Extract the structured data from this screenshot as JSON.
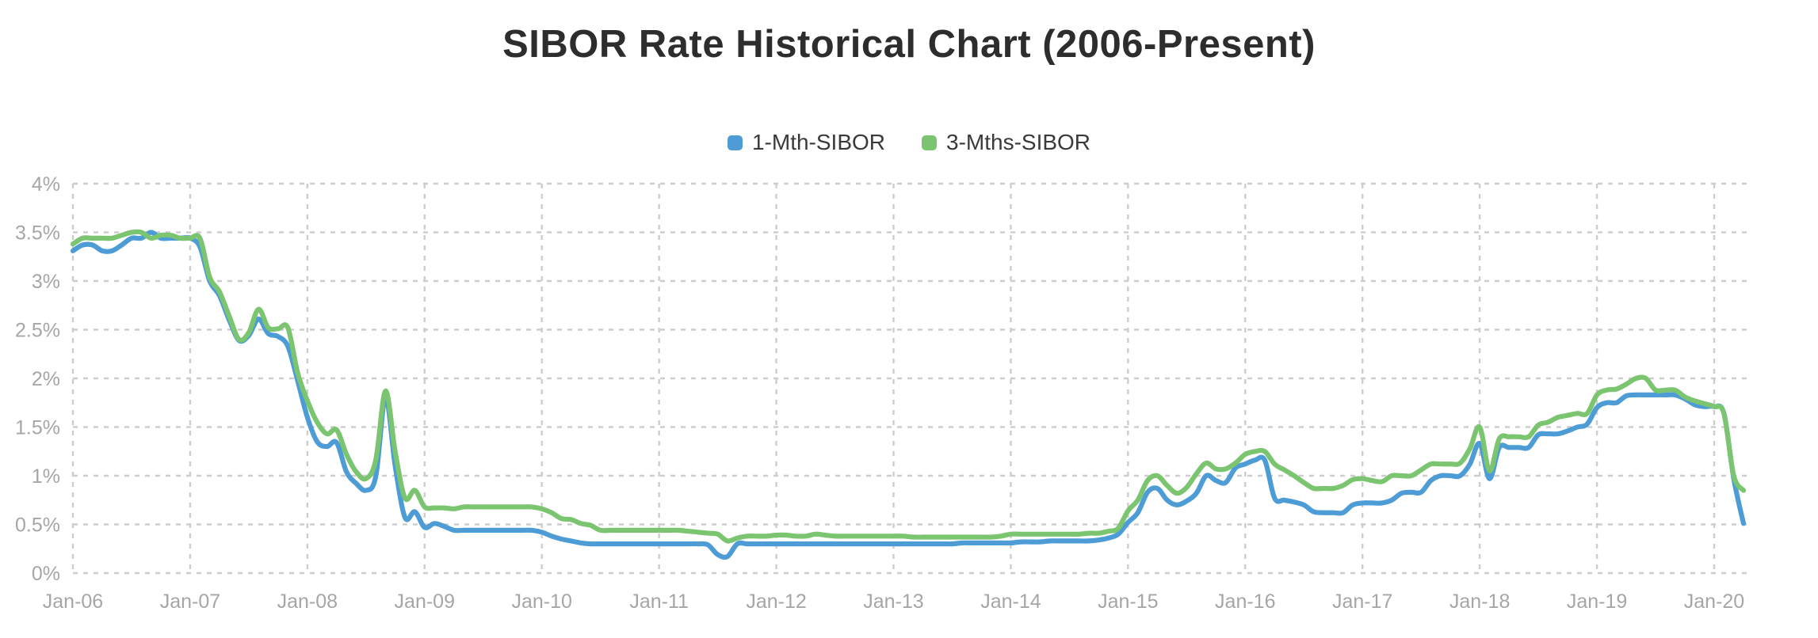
{
  "page": {
    "background": "#ffffff"
  },
  "chart": {
    "title": "SIBOR Rate Historical Chart (2006-Present)"
  },
  "chart_data": {
    "type": "line",
    "title": "SIBOR Rate Historical Chart (2006-Present)",
    "x_start": "Jan-2006",
    "x_interval": "monthly",
    "x_tick_labels": [
      "Jan-06",
      "Jan-07",
      "Jan-08",
      "Jan-09",
      "Jan-10",
      "Jan-11",
      "Jan-12",
      "Jan-13",
      "Jan-14",
      "Jan-15",
      "Jan-16",
      "Jan-17",
      "Jan-18",
      "Jan-19",
      "Jan-20"
    ],
    "y_ticks": [
      0,
      0.5,
      1,
      1.5,
      2,
      2.5,
      3,
      3.5,
      4
    ],
    "y_tick_labels": [
      "0%",
      "0.5%",
      "1%",
      "1.5%",
      "2%",
      "2.5%",
      "3%",
      "3.5%",
      "4%"
    ],
    "ylim": [
      0,
      4
    ],
    "grid": "dashed",
    "legend_position": "top",
    "colors": {
      "grid": "#cdcdcd",
      "axis_text": "#a6a6a6",
      "title_text": "#2d2d2d",
      "legend_text": "#3a3a3a",
      "series_1m": "#4D9CD6",
      "series_3m": "#7CC570"
    },
    "series": [
      {
        "name": "1-Mth-SIBOR",
        "color": "#4D9CD6",
        "values": [
          3.31,
          3.37,
          3.37,
          3.31,
          3.31,
          3.37,
          3.44,
          3.44,
          3.5,
          3.44,
          3.44,
          3.44,
          3.44,
          3.35,
          3.0,
          2.85,
          2.6,
          2.39,
          2.44,
          2.61,
          2.46,
          2.43,
          2.33,
          1.98,
          1.6,
          1.35,
          1.3,
          1.34,
          1.04,
          0.92,
          0.85,
          0.99,
          1.8,
          1.09,
          0.57,
          0.63,
          0.47,
          0.51,
          0.48,
          0.44,
          0.44,
          0.44,
          0.44,
          0.44,
          0.44,
          0.44,
          0.44,
          0.44,
          0.42,
          0.38,
          0.35,
          0.33,
          0.31,
          0.3,
          0.3,
          0.3,
          0.3,
          0.3,
          0.3,
          0.3,
          0.3,
          0.3,
          0.3,
          0.3,
          0.3,
          0.29,
          0.19,
          0.17,
          0.3,
          0.3,
          0.3,
          0.3,
          0.3,
          0.3,
          0.3,
          0.3,
          0.3,
          0.3,
          0.3,
          0.3,
          0.3,
          0.3,
          0.3,
          0.3,
          0.3,
          0.3,
          0.3,
          0.3,
          0.3,
          0.3,
          0.3,
          0.31,
          0.31,
          0.31,
          0.31,
          0.31,
          0.31,
          0.32,
          0.32,
          0.32,
          0.33,
          0.33,
          0.33,
          0.33,
          0.33,
          0.34,
          0.36,
          0.4,
          0.52,
          0.62,
          0.83,
          0.87,
          0.75,
          0.7,
          0.74,
          0.82,
          1.0,
          0.95,
          0.93,
          1.08,
          1.12,
          1.16,
          1.16,
          0.77,
          0.75,
          0.73,
          0.7,
          0.63,
          0.62,
          0.62,
          0.62,
          0.7,
          0.72,
          0.72,
          0.72,
          0.75,
          0.82,
          0.83,
          0.83,
          0.95,
          1.0,
          1.0,
          1.0,
          1.12,
          1.33,
          0.97,
          1.29,
          1.29,
          1.29,
          1.29,
          1.42,
          1.43,
          1.43,
          1.46,
          1.5,
          1.53,
          1.7,
          1.75,
          1.75,
          1.82,
          1.83,
          1.83,
          1.83,
          1.83,
          1.83,
          1.79,
          1.73,
          1.71,
          1.71,
          1.64,
          0.97,
          0.51
        ]
      },
      {
        "name": "3-Mths-SIBOR",
        "color": "#7CC570",
        "values": [
          3.38,
          3.44,
          3.44,
          3.44,
          3.44,
          3.47,
          3.5,
          3.5,
          3.44,
          3.47,
          3.47,
          3.44,
          3.44,
          3.44,
          3.04,
          2.89,
          2.64,
          2.4,
          2.47,
          2.71,
          2.52,
          2.51,
          2.52,
          2.06,
          1.77,
          1.55,
          1.43,
          1.47,
          1.22,
          1.04,
          0.97,
          1.16,
          1.87,
          1.24,
          0.77,
          0.85,
          0.68,
          0.67,
          0.67,
          0.66,
          0.68,
          0.68,
          0.68,
          0.68,
          0.68,
          0.68,
          0.68,
          0.68,
          0.66,
          0.62,
          0.56,
          0.55,
          0.51,
          0.49,
          0.44,
          0.44,
          0.44,
          0.44,
          0.44,
          0.44,
          0.44,
          0.44,
          0.44,
          0.43,
          0.42,
          0.41,
          0.4,
          0.33,
          0.36,
          0.38,
          0.38,
          0.38,
          0.39,
          0.39,
          0.38,
          0.38,
          0.4,
          0.39,
          0.38,
          0.38,
          0.38,
          0.38,
          0.38,
          0.38,
          0.38,
          0.38,
          0.37,
          0.37,
          0.37,
          0.37,
          0.37,
          0.37,
          0.37,
          0.37,
          0.37,
          0.38,
          0.4,
          0.4,
          0.4,
          0.4,
          0.4,
          0.4,
          0.4,
          0.4,
          0.41,
          0.41,
          0.43,
          0.46,
          0.64,
          0.75,
          0.95,
          1.0,
          0.9,
          0.82,
          0.88,
          1.02,
          1.13,
          1.07,
          1.07,
          1.13,
          1.22,
          1.25,
          1.25,
          1.12,
          1.06,
          1.0,
          0.93,
          0.87,
          0.87,
          0.87,
          0.9,
          0.96,
          0.97,
          0.95,
          0.94,
          1.0,
          1.0,
          1.0,
          1.06,
          1.12,
          1.12,
          1.12,
          1.13,
          1.28,
          1.5,
          1.05,
          1.38,
          1.4,
          1.4,
          1.4,
          1.52,
          1.55,
          1.6,
          1.62,
          1.64,
          1.64,
          1.83,
          1.88,
          1.89,
          1.94,
          2.0,
          2.0,
          1.88,
          1.88,
          1.88,
          1.81,
          1.77,
          1.74,
          1.71,
          1.64,
          1.0,
          0.85
        ]
      }
    ]
  }
}
